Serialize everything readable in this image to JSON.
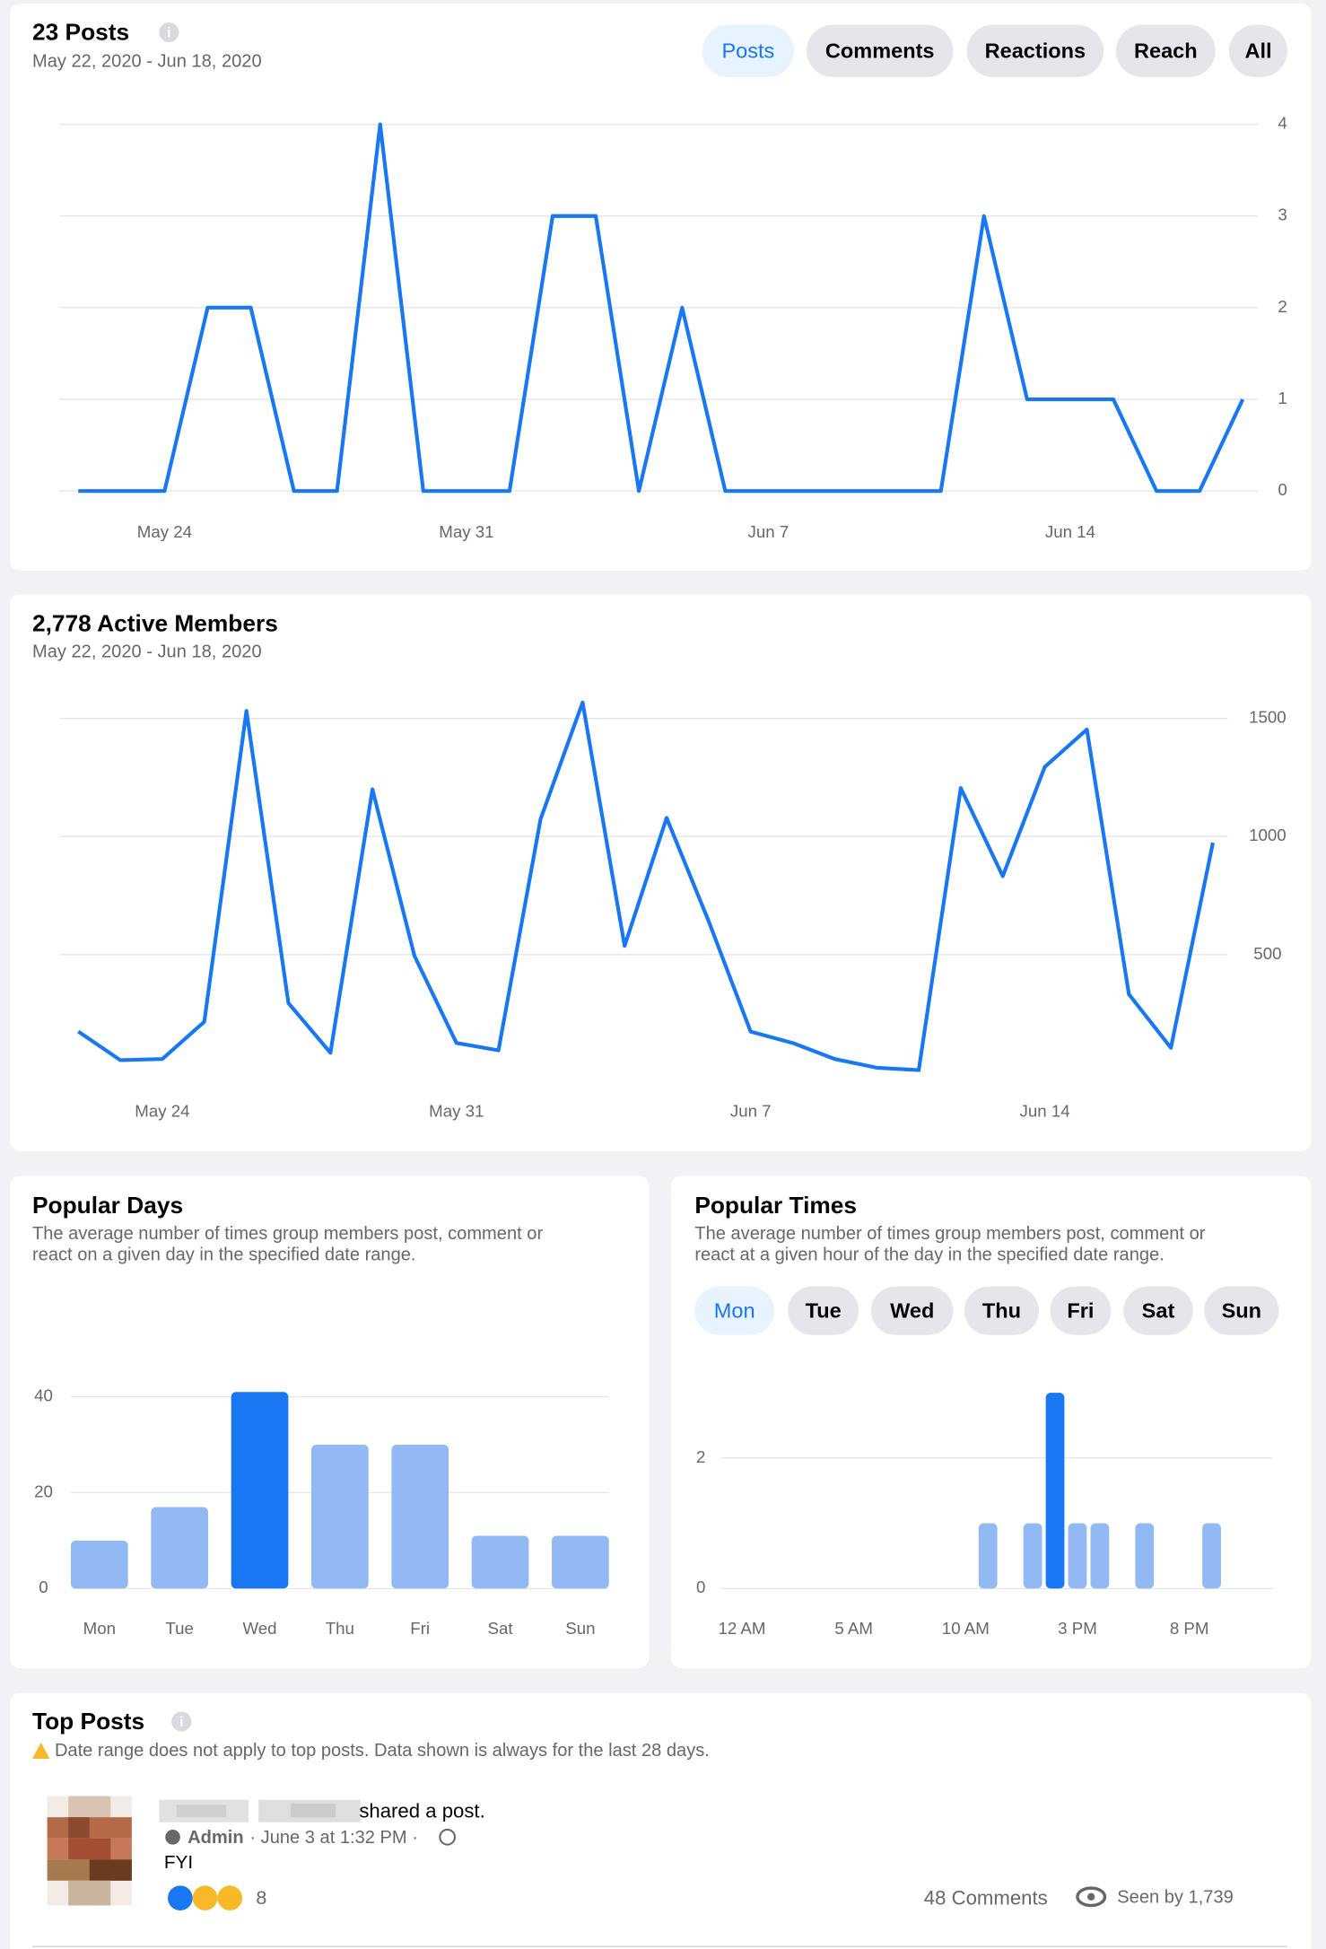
{
  "posts_card": {
    "title": "23 Posts",
    "date_range": "May 22, 2020 - Jun 18, 2020",
    "tabs": [
      "Posts",
      "Comments",
      "Reactions",
      "Reach",
      "All"
    ]
  },
  "members_card": {
    "title": "2,778 Active Members",
    "date_range": "May 22, 2020 - Jun 18, 2020"
  },
  "days_card": {
    "title": "Popular Days",
    "description": [
      "The average number of times group members post, comment or",
      "react on a given day in the specified date range."
    ]
  },
  "times_card": {
    "title": "Popular Times",
    "description": [
      "The average number of times group members post, comment or",
      "react at a given hour of the day in the specified date range."
    ],
    "day_tabs": [
      "Mon",
      "Tue",
      "Wed",
      "Thu",
      "Fri",
      "Sat",
      "Sun"
    ]
  },
  "top_posts": {
    "title": "Top Posts",
    "notice": "Date range does not apply to top posts. Data shown is always for the last 28 days.",
    "post": {
      "action": "shared a post.",
      "role": "Admin",
      "meta": "· June 3 at 1:32 PM ·",
      "text": "FYI",
      "reactions": "8",
      "comments": "48 Comments",
      "seen": "Seen by 1,739"
    }
  },
  "chart_data": [
    {
      "type": "line",
      "color": "#1877f2",
      "categories": [
        null,
        null,
        "May 24",
        null,
        null,
        null,
        null,
        null,
        null,
        "May 31",
        null,
        null,
        null,
        null,
        null,
        null,
        "Jun 7",
        null,
        null,
        null,
        null,
        null,
        null,
        "Jun 14",
        null,
        null,
        null,
        null
      ],
      "values": [
        0,
        0,
        0,
        2,
        2,
        0,
        0,
        4,
        0,
        0,
        0,
        3,
        3,
        0,
        2,
        0,
        0,
        0,
        0,
        0,
        0,
        3,
        1,
        1,
        1,
        0,
        0,
        1
      ],
      "ylim": [
        0,
        4
      ],
      "yticks": [
        0,
        1,
        2,
        3,
        4
      ],
      "grid": true
    },
    {
      "type": "line",
      "color": "#1877f2",
      "categories": [
        null,
        null,
        "May 24",
        null,
        null,
        null,
        null,
        null,
        null,
        "May 31",
        null,
        null,
        null,
        null,
        null,
        null,
        "Jun 7",
        null,
        null,
        null,
        null,
        null,
        null,
        "Jun 14",
        null,
        null,
        null,
        null
      ],
      "values": [
        174,
        53,
        58,
        216,
        1532,
        295,
        84,
        1200,
        495,
        126,
        95,
        1074,
        1568,
        537,
        1079,
        642,
        174,
        126,
        58,
        21,
        11,
        1205,
        832,
        1295,
        1453,
        332,
        105,
        974
      ],
      "ylim": [
        0,
        1600
      ],
      "yticks": [
        500,
        1000,
        1500
      ],
      "grid": true
    },
    {
      "type": "bar",
      "categories": [
        "Mon",
        "Tue",
        "Wed",
        "Thu",
        "Fri",
        "Sat",
        "Sun"
      ],
      "values": [
        10,
        17,
        41,
        30,
        30,
        11,
        11
      ],
      "colors": [
        "#93b9f5",
        "#93b9f5",
        "#1877f2",
        "#93b9f5",
        "#93b9f5",
        "#93b9f5",
        "#93b9f5"
      ],
      "ylim": [
        0,
        42
      ],
      "yticks": [
        0,
        20,
        40
      ],
      "grid": true
    },
    {
      "type": "bar",
      "categories": [
        "12 AM",
        null,
        null,
        null,
        null,
        "5 AM",
        null,
        null,
        null,
        null,
        "10 AM",
        null,
        null,
        null,
        null,
        "3 PM",
        null,
        null,
        null,
        null,
        "8 PM",
        null,
        null,
        null
      ],
      "values": [
        0,
        0,
        0,
        0,
        0,
        0,
        0,
        0,
        0,
        0,
        0,
        1,
        0,
        1,
        3,
        1,
        1,
        0,
        1,
        0,
        0,
        1,
        0,
        0
      ],
      "colors": [
        "#93b9f5",
        "#93b9f5",
        "#93b9f5",
        "#93b9f5",
        "#93b9f5",
        "#93b9f5",
        "#93b9f5",
        "#93b9f5",
        "#93b9f5",
        "#93b9f5",
        "#93b9f5",
        "#93b9f5",
        "#93b9f5",
        "#93b9f5",
        "#1877f2",
        "#93b9f5",
        "#93b9f5",
        "#93b9f5",
        "#93b9f5",
        "#93b9f5",
        "#93b9f5",
        "#93b9f5",
        "#93b9f5",
        "#93b9f5"
      ],
      "ylim": [
        0,
        3
      ],
      "yticks": [
        0,
        2
      ],
      "grid": true
    }
  ]
}
